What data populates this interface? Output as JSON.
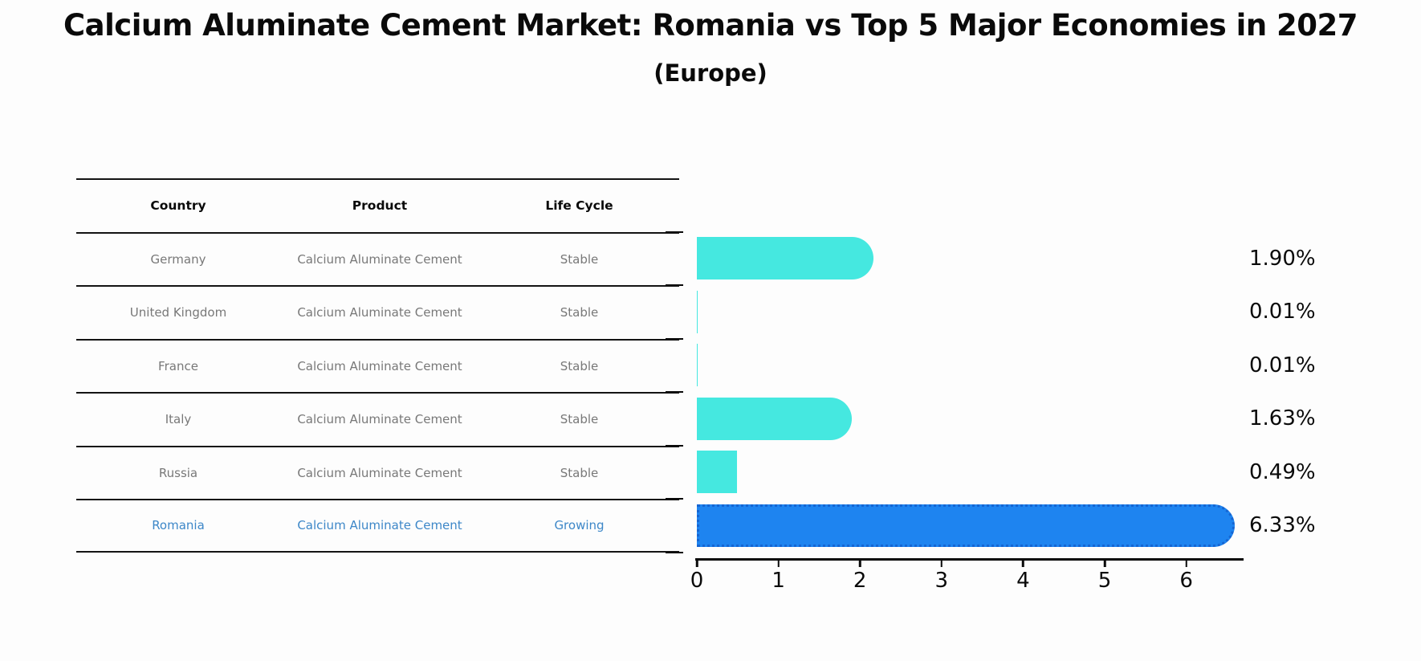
{
  "title": "Calcium Aluminate Cement Market: Romania vs Top 5 Major Economies in 2027",
  "subtitle": "(Europe)",
  "table": {
    "headers": {
      "country": "Country",
      "product": "Product",
      "life_cycle": "Life Cycle"
    },
    "rows": [
      {
        "country": "Germany",
        "product": "Calcium Aluminate Cement",
        "life_cycle": "Stable"
      },
      {
        "country": "United Kingdom",
        "product": "Calcium Aluminate Cement",
        "life_cycle": "Stable"
      },
      {
        "country": "France",
        "product": "Calcium Aluminate Cement",
        "life_cycle": "Stable"
      },
      {
        "country": "Italy",
        "product": "Calcium Aluminate Cement",
        "life_cycle": "Stable"
      },
      {
        "country": "Russia",
        "product": "Calcium Aluminate Cement",
        "life_cycle": "Stable"
      },
      {
        "country": "Romania",
        "product": "Calcium Aluminate Cement",
        "life_cycle": "Growing"
      }
    ]
  },
  "chart_data": {
    "type": "bar",
    "orientation": "horizontal",
    "title": "Calcium Aluminate Cement Market: Romania vs Top 5 Major Economies in 2027",
    "subtitle": "(Europe)",
    "categories": [
      "Germany",
      "United Kingdom",
      "France",
      "Italy",
      "Russia",
      "Romania"
    ],
    "values": [
      1.9,
      0.01,
      0.01,
      1.63,
      0.49,
      6.33
    ],
    "value_labels": [
      "1.90%",
      "0.01%",
      "0.01%",
      "1.63%",
      "0.49%",
      "6.33%"
    ],
    "xlabel": "",
    "ylabel": "",
    "xlim": [
      0,
      6.7
    ],
    "xticks": [
      "0",
      "1",
      "2",
      "3",
      "4",
      "5",
      "6"
    ],
    "grid": false,
    "legend": "none",
    "bar_colors": [
      "#45e8e0",
      "#45e8e0",
      "#45e8e0",
      "#45e8e0",
      "#45e8e0",
      "#1e84f0"
    ],
    "highlight_index": 5,
    "colors": {
      "bar_cyan": "#45e8e0",
      "bar_blue": "#1e84f0",
      "highlight_border": "#1565d2",
      "highlight_text": "#3d87c8",
      "table_text": "#787878",
      "axis": "#0a0a0a"
    }
  }
}
